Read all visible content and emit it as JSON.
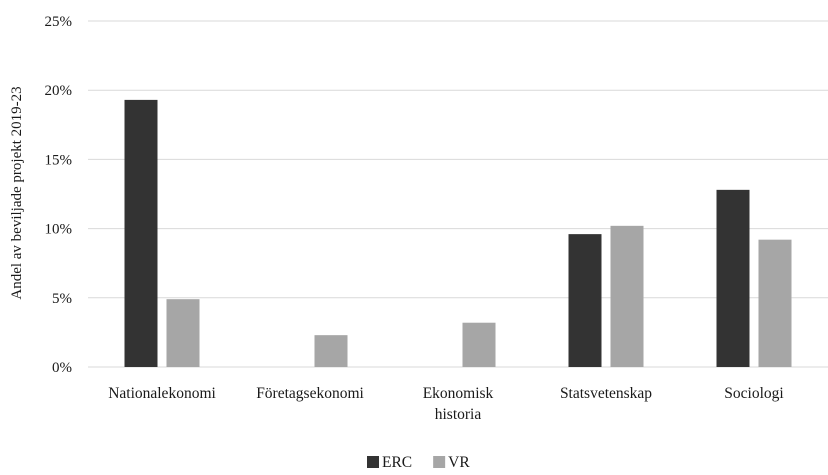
{
  "chart_data": {
    "type": "bar",
    "title": "",
    "xlabel": "",
    "ylabel": "Andel av beviljade projekt 2019-23",
    "categories": [
      [
        "Nationalekonomi"
      ],
      [
        "Företagsekonomi"
      ],
      [
        "Ekonomisk",
        "historia"
      ],
      [
        "Statsvetenskap"
      ],
      [
        "Sociologi"
      ]
    ],
    "series": [
      {
        "name": "ERC",
        "color": "#333333",
        "values": [
          19.3,
          0,
          0,
          9.6,
          12.8
        ]
      },
      {
        "name": "VR",
        "color": "#a6a6a6",
        "values": [
          4.9,
          2.3,
          3.2,
          10.2,
          9.2
        ]
      }
    ],
    "ylim": [
      0,
      25
    ],
    "yticks": [
      0,
      5,
      10,
      15,
      20,
      25
    ],
    "ytick_labels": [
      "0%",
      "5%",
      "10%",
      "15%",
      "20%",
      "25%"
    ],
    "grid": true,
    "legend_position": "bottom"
  }
}
